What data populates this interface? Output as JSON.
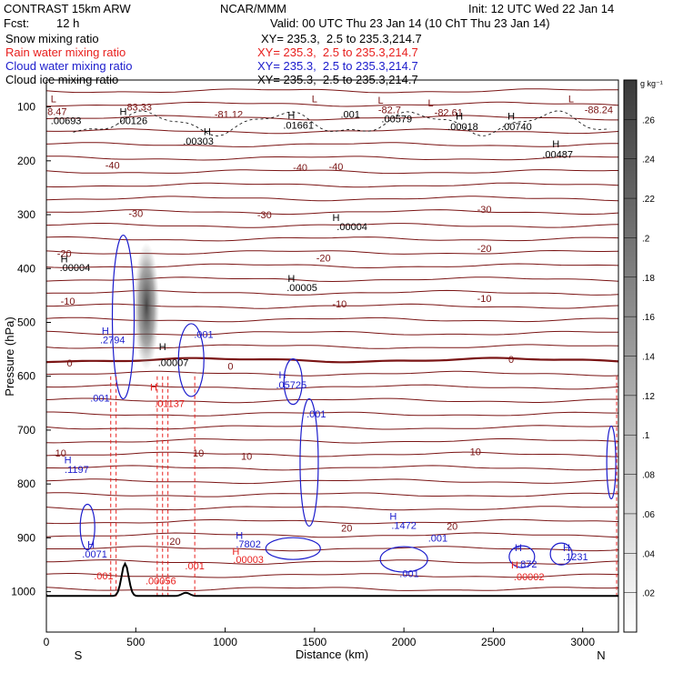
{
  "header": {
    "model": "CONTRAST 15km ARW",
    "org": "NCAR/MMM",
    "init": "Init: 12 UTC Wed 22 Jan 14",
    "fcst_label": "Fcst:",
    "fcst_value": "12 h",
    "valid": "Valid: 00 UTC Thu 23 Jan 14 (10 ChT Thu 23 Jan 14)",
    "xy_text": "XY= 235.3,  2.5 to 235.3,214.7"
  },
  "legend": [
    {
      "label": "Snow mixing ratio",
      "color": "#000000"
    },
    {
      "label": "Rain water mixing ratio",
      "color": "#e8201e"
    },
    {
      "label": "Cloud water mixing ratio",
      "color": "#1c1ccc"
    },
    {
      "label": "Cloud ice mixing ratio",
      "color": "#000000"
    }
  ],
  "colors": {
    "temp": "#7a1414",
    "zero": "#7a1414",
    "rain": "#e8201e",
    "cloud": "#1c1ccc",
    "ice": "#000000",
    "terrain": "#000000"
  },
  "chart_data": {
    "type": "cross-section",
    "xlabel": "Distance (km)",
    "ylabel": "Pressure (hPa)",
    "xlim": [
      0,
      3200
    ],
    "ylim": [
      1075,
      50
    ],
    "xticks": [
      0,
      500,
      1000,
      1500,
      2000,
      2500,
      3000
    ],
    "yticks": [
      100,
      200,
      300,
      400,
      500,
      600,
      700,
      800,
      900,
      1000
    ],
    "direction_left": "S",
    "direction_right": "N",
    "colorbar": {
      "unit": "g kg⁻¹",
      "ticks": [
        ".02",
        ".04",
        ".06",
        ".08",
        ".1",
        ".12",
        ".14",
        ".16",
        ".18",
        ".2",
        ".22",
        ".24",
        ".26"
      ],
      "min": 0,
      "max": 0.28
    },
    "temperature_isotherms": [
      {
        "label": "-40",
        "positions": [
          [
            370,
            208
          ],
          [
            1420,
            212
          ],
          [
            1620,
            210
          ]
        ]
      },
      {
        "label": "-30",
        "positions": [
          [
            500,
            297
          ],
          [
            1220,
            300
          ],
          [
            2450,
            290
          ]
        ]
      },
      {
        "label": "-20",
        "positions": [
          [
            100,
            372
          ],
          [
            1550,
            380
          ],
          [
            2450,
            362
          ]
        ]
      },
      {
        "label": "-10",
        "positions": [
          [
            120,
            460
          ],
          [
            1640,
            465
          ],
          [
            2450,
            455
          ]
        ]
      },
      {
        "label": "0",
        "positions": [
          [
            130,
            575
          ],
          [
            1030,
            581
          ],
          [
            2600,
            568
          ]
        ]
      },
      {
        "label": "10",
        "positions": [
          [
            80,
            742
          ],
          [
            850,
            742
          ],
          [
            1120,
            748
          ],
          [
            2400,
            740
          ]
        ]
      },
      {
        "label": "20",
        "positions": [
          [
            1680,
            882
          ],
          [
            2270,
            878
          ],
          [
            720,
            906
          ]
        ]
      }
    ],
    "annotations": [
      {
        "text": "L",
        "x": 40,
        "p": 85,
        "color": "#7a1414"
      },
      {
        "text": "8.47",
        "x": 60,
        "p": 108,
        "color": "#7a1414"
      },
      {
        "text": ".00693",
        "x": 110,
        "p": 125,
        "color": "#000000"
      },
      {
        "text": "H",
        "x": 430,
        "p": 108,
        "color": "#000000"
      },
      {
        "text": "83.33",
        "x": 520,
        "p": 100,
        "color": "#7a1414"
      },
      {
        "text": ".00126",
        "x": 480,
        "p": 125,
        "color": "#000000"
      },
      {
        "text": "-81.12",
        "x": 1020,
        "p": 113,
        "color": "#7a1414"
      },
      {
        "text": "H",
        "x": 900,
        "p": 145,
        "color": "#000000"
      },
      {
        "text": ".00303",
        "x": 850,
        "p": 163,
        "color": "#000000"
      },
      {
        "text": "H",
        "x": 1370,
        "p": 115,
        "color": "#000000"
      },
      {
        "text": ".01661",
        "x": 1410,
        "p": 134,
        "color": "#000000"
      },
      {
        "text": "L",
        "x": 1500,
        "p": 85,
        "color": "#7a1414"
      },
      {
        "text": ".001",
        "x": 1700,
        "p": 113,
        "color": "#000000"
      },
      {
        "text": "L",
        "x": 1870,
        "p": 87,
        "color": "#7a1414"
      },
      {
        "text": "-82.7",
        "x": 1920,
        "p": 105,
        "color": "#7a1414"
      },
      {
        "text": ".00579",
        "x": 1960,
        "p": 122,
        "color": "#000000"
      },
      {
        "text": "L",
        "x": 2150,
        "p": 92,
        "color": "#7a1414"
      },
      {
        "text": "-82.61",
        "x": 2250,
        "p": 110,
        "color": "#7a1414"
      },
      {
        "text": "H",
        "x": 2310,
        "p": 117,
        "color": "#000000"
      },
      {
        "text": ".00018",
        "x": 2330,
        "p": 136,
        "color": "#000000"
      },
      {
        "text": "H",
        "x": 2600,
        "p": 117,
        "color": "#000000"
      },
      {
        "text": ".00740",
        "x": 2630,
        "p": 136,
        "color": "#000000"
      },
      {
        "text": "L",
        "x": 2935,
        "p": 85,
        "color": "#7a1414"
      },
      {
        "text": "-88.24",
        "x": 3090,
        "p": 105,
        "color": "#7a1414"
      },
      {
        "text": "H",
        "x": 2850,
        "p": 168,
        "color": "#000000"
      },
      {
        "text": ".00487",
        "x": 2860,
        "p": 188,
        "color": "#000000"
      },
      {
        "text": "H",
        "x": 1620,
        "p": 305,
        "color": "#000000"
      },
      {
        "text": ".00004",
        "x": 1710,
        "p": 322,
        "color": "#000000"
      },
      {
        "text": "H",
        "x": 100,
        "p": 382,
        "color": "#000000"
      },
      {
        "text": ".00004",
        "x": 160,
        "p": 398,
        "color": "#000000"
      },
      {
        "text": "H",
        "x": 1370,
        "p": 418,
        "color": "#000000"
      },
      {
        "text": ".00005",
        "x": 1430,
        "p": 435,
        "color": "#000000"
      },
      {
        "text": "H",
        "x": 330,
        "p": 515,
        "color": "#1c1ccc"
      },
      {
        "text": ".2794",
        "x": 370,
        "p": 532,
        "color": "#1c1ccc"
      },
      {
        "text": ".001",
        "x": 880,
        "p": 522,
        "color": "#1c1ccc"
      },
      {
        "text": "H",
        "x": 650,
        "p": 545,
        "color": "#000000"
      },
      {
        "text": ".00007",
        "x": 710,
        "p": 574,
        "color": "#000000"
      },
      {
        "text": "H",
        "x": 600,
        "p": 620,
        "color": "#e8201e"
      },
      {
        "text": ".01137",
        "x": 690,
        "p": 650,
        "color": "#e8201e"
      },
      {
        "text": "H",
        "x": 1320,
        "p": 597,
        "color": "#1c1ccc"
      },
      {
        "text": ".05725",
        "x": 1370,
        "p": 616,
        "color": "#1c1ccc"
      },
      {
        "text": ".001",
        "x": 1510,
        "p": 670,
        "color": "#1c1ccc"
      },
      {
        "text": ".001",
        "x": 300,
        "p": 640,
        "color": "#1c1ccc"
      },
      {
        "text": "H",
        "x": 120,
        "p": 755,
        "color": "#1c1ccc"
      },
      {
        "text": ".1197",
        "x": 170,
        "p": 773,
        "color": "#1c1ccc"
      },
      {
        "text": "H",
        "x": 250,
        "p": 912,
        "color": "#1c1ccc"
      },
      {
        "text": ".0071",
        "x": 270,
        "p": 930,
        "color": "#1c1ccc"
      },
      {
        "text": ".001",
        "x": 320,
        "p": 970,
        "color": "#e8201e"
      },
      {
        "text": ".00056",
        "x": 640,
        "p": 980,
        "color": "#e8201e"
      },
      {
        "text": ".001",
        "x": 830,
        "p": 952,
        "color": "#e8201e"
      },
      {
        "text": "H",
        "x": 1080,
        "p": 895,
        "color": "#1c1ccc"
      },
      {
        "text": ".7802",
        "x": 1130,
        "p": 911,
        "color": "#1c1ccc"
      },
      {
        "text": "H",
        "x": 1060,
        "p": 925,
        "color": "#e8201e"
      },
      {
        "text": ".00003",
        "x": 1130,
        "p": 940,
        "color": "#e8201e"
      },
      {
        "text": "H",
        "x": 1940,
        "p": 860,
        "color": "#1c1ccc"
      },
      {
        "text": ".1472",
        "x": 2000,
        "p": 877,
        "color": "#1c1ccc"
      },
      {
        "text": ".001",
        "x": 2190,
        "p": 900,
        "color": "#1c1ccc"
      },
      {
        "text": ".001",
        "x": 2030,
        "p": 966,
        "color": "#1c1ccc"
      },
      {
        "text": "H",
        "x": 2640,
        "p": 918,
        "color": "#1c1ccc"
      },
      {
        "text": ".872",
        "x": 2690,
        "p": 948,
        "color": "#1c1ccc"
      },
      {
        "text": "H",
        "x": 2620,
        "p": 950,
        "color": "#e8201e"
      },
      {
        "text": ".00002",
        "x": 2700,
        "p": 972,
        "color": "#e8201e"
      },
      {
        "text": "H",
        "x": 2910,
        "p": 918,
        "color": "#1c1ccc"
      },
      {
        "text": ".1231",
        "x": 2960,
        "p": 935,
        "color": "#1c1ccc"
      }
    ]
  }
}
